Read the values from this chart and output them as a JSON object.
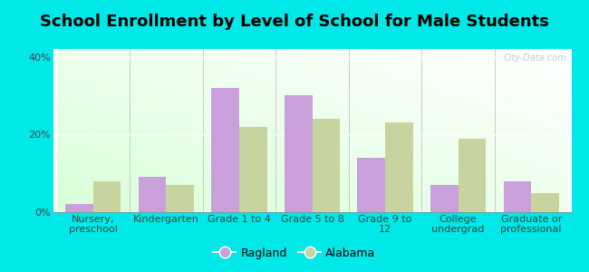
{
  "title": "School Enrollment by Level of School for Male Students",
  "categories": [
    "Nursery,\npreschool",
    "Kindergarten",
    "Grade 1 to 4",
    "Grade 5 to 8",
    "Grade 9 to\n12",
    "College\nundergrad",
    "Graduate or\nprofessional"
  ],
  "ragland": [
    2.0,
    9.0,
    32.0,
    30.0,
    14.0,
    7.0,
    8.0
  ],
  "alabama": [
    8.0,
    7.0,
    22.0,
    24.0,
    23.0,
    19.0,
    5.0
  ],
  "ragland_color": "#c9a0dc",
  "alabama_color": "#c8d4a0",
  "background_color": "#00e8e8",
  "ylim": [
    0,
    42
  ],
  "yticks": [
    0,
    20,
    40
  ],
  "ytick_labels": [
    "0%",
    "20%",
    "40%"
  ],
  "legend_ragland": "Ragland",
  "legend_alabama": "Alabama",
  "watermark": "City-Data.com",
  "title_fontsize": 13,
  "tick_fontsize": 8,
  "legend_fontsize": 9,
  "bar_width": 0.38
}
